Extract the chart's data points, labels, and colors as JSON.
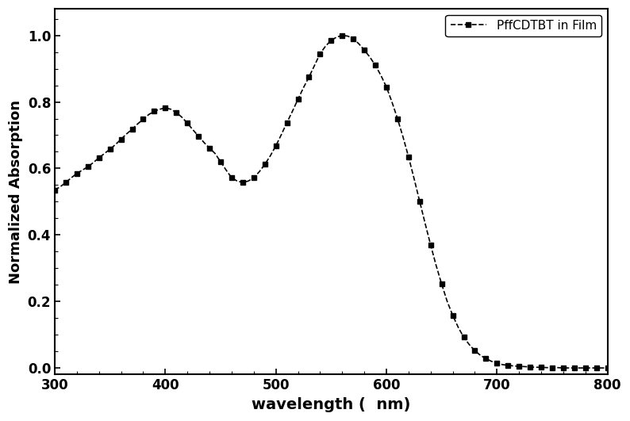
{
  "title": "",
  "xlabel": "wavelength (  nm)",
  "ylabel": "Normalized Absorption",
  "xlim": [
    300,
    800
  ],
  "ylim": [
    -0.02,
    1.08
  ],
  "xticks": [
    300,
    400,
    500,
    600,
    700,
    800
  ],
  "yticks": [
    0.0,
    0.2,
    0.4,
    0.6,
    0.8,
    1.0
  ],
  "legend_label": "PffCDTBT in Film",
  "line_color": "#000000",
  "marker": "s",
  "markersize": 4,
  "linestyle": "--",
  "linewidth": 1.2,
  "curve_x": [
    300,
    305,
    310,
    315,
    320,
    325,
    330,
    335,
    340,
    345,
    350,
    355,
    360,
    365,
    370,
    375,
    380,
    385,
    390,
    395,
    400,
    405,
    410,
    415,
    420,
    425,
    430,
    435,
    440,
    445,
    450,
    455,
    460,
    465,
    470,
    475,
    480,
    485,
    490,
    495,
    500,
    505,
    510,
    515,
    520,
    525,
    530,
    535,
    540,
    545,
    550,
    555,
    560,
    565,
    570,
    575,
    580,
    585,
    590,
    595,
    600,
    605,
    610,
    615,
    620,
    625,
    630,
    635,
    640,
    645,
    650,
    655,
    660,
    665,
    670,
    675,
    680,
    685,
    690,
    695,
    700,
    705,
    710,
    715,
    720,
    725,
    730,
    735,
    740,
    745,
    750,
    755,
    760,
    765,
    770,
    775,
    780,
    785,
    790,
    795,
    800
  ],
  "curve_y": [
    0.535,
    0.545,
    0.558,
    0.572,
    0.585,
    0.595,
    0.605,
    0.618,
    0.632,
    0.645,
    0.658,
    0.672,
    0.688,
    0.704,
    0.718,
    0.734,
    0.748,
    0.762,
    0.772,
    0.778,
    0.782,
    0.778,
    0.768,
    0.754,
    0.736,
    0.716,
    0.697,
    0.678,
    0.661,
    0.645,
    0.62,
    0.595,
    0.572,
    0.562,
    0.558,
    0.562,
    0.572,
    0.59,
    0.612,
    0.638,
    0.668,
    0.702,
    0.738,
    0.772,
    0.808,
    0.843,
    0.875,
    0.91,
    0.945,
    0.968,
    0.985,
    0.995,
    1.0,
    0.998,
    0.99,
    0.975,
    0.956,
    0.935,
    0.91,
    0.88,
    0.845,
    0.8,
    0.75,
    0.695,
    0.635,
    0.57,
    0.502,
    0.435,
    0.37,
    0.308,
    0.252,
    0.2,
    0.158,
    0.122,
    0.092,
    0.07,
    0.052,
    0.038,
    0.028,
    0.02,
    0.014,
    0.01,
    0.008,
    0.006,
    0.005,
    0.004,
    0.003,
    0.002,
    0.002,
    0.001,
    0.001,
    0.001,
    0.0,
    0.0,
    0.0,
    0.0,
    0.0,
    0.0,
    0.0,
    0.0,
    0.0
  ],
  "background_color": "#ffffff",
  "figure_edge_color": "#000000",
  "xlabel_fontsize": 14,
  "ylabel_fontsize": 13,
  "tick_fontsize": 12,
  "legend_fontsize": 11
}
